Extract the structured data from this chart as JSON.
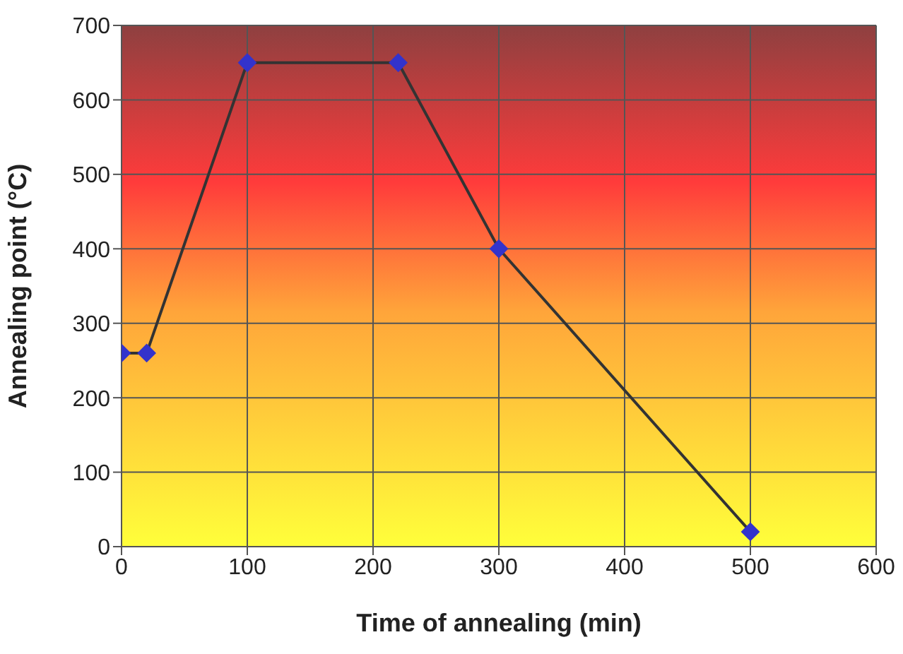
{
  "chart_data": {
    "type": "line",
    "xlabel": "Time of annealing (min)",
    "ylabel": "Annealing point (°C)",
    "x": [
      0,
      20,
      100,
      220,
      300,
      500
    ],
    "series": [
      {
        "color": "#333333",
        "values": [
          260,
          260,
          650,
          650,
          400,
          20
        ]
      }
    ],
    "xlim": [
      0,
      600
    ],
    "xticks": [
      0,
      100,
      200,
      300,
      400,
      500,
      600
    ],
    "ylim": [
      0,
      700
    ],
    "yticks": [
      0,
      100,
      200,
      300,
      400,
      500,
      600,
      700
    ],
    "grid": true,
    "marker": "diamond",
    "line_style": "solid"
  }
}
